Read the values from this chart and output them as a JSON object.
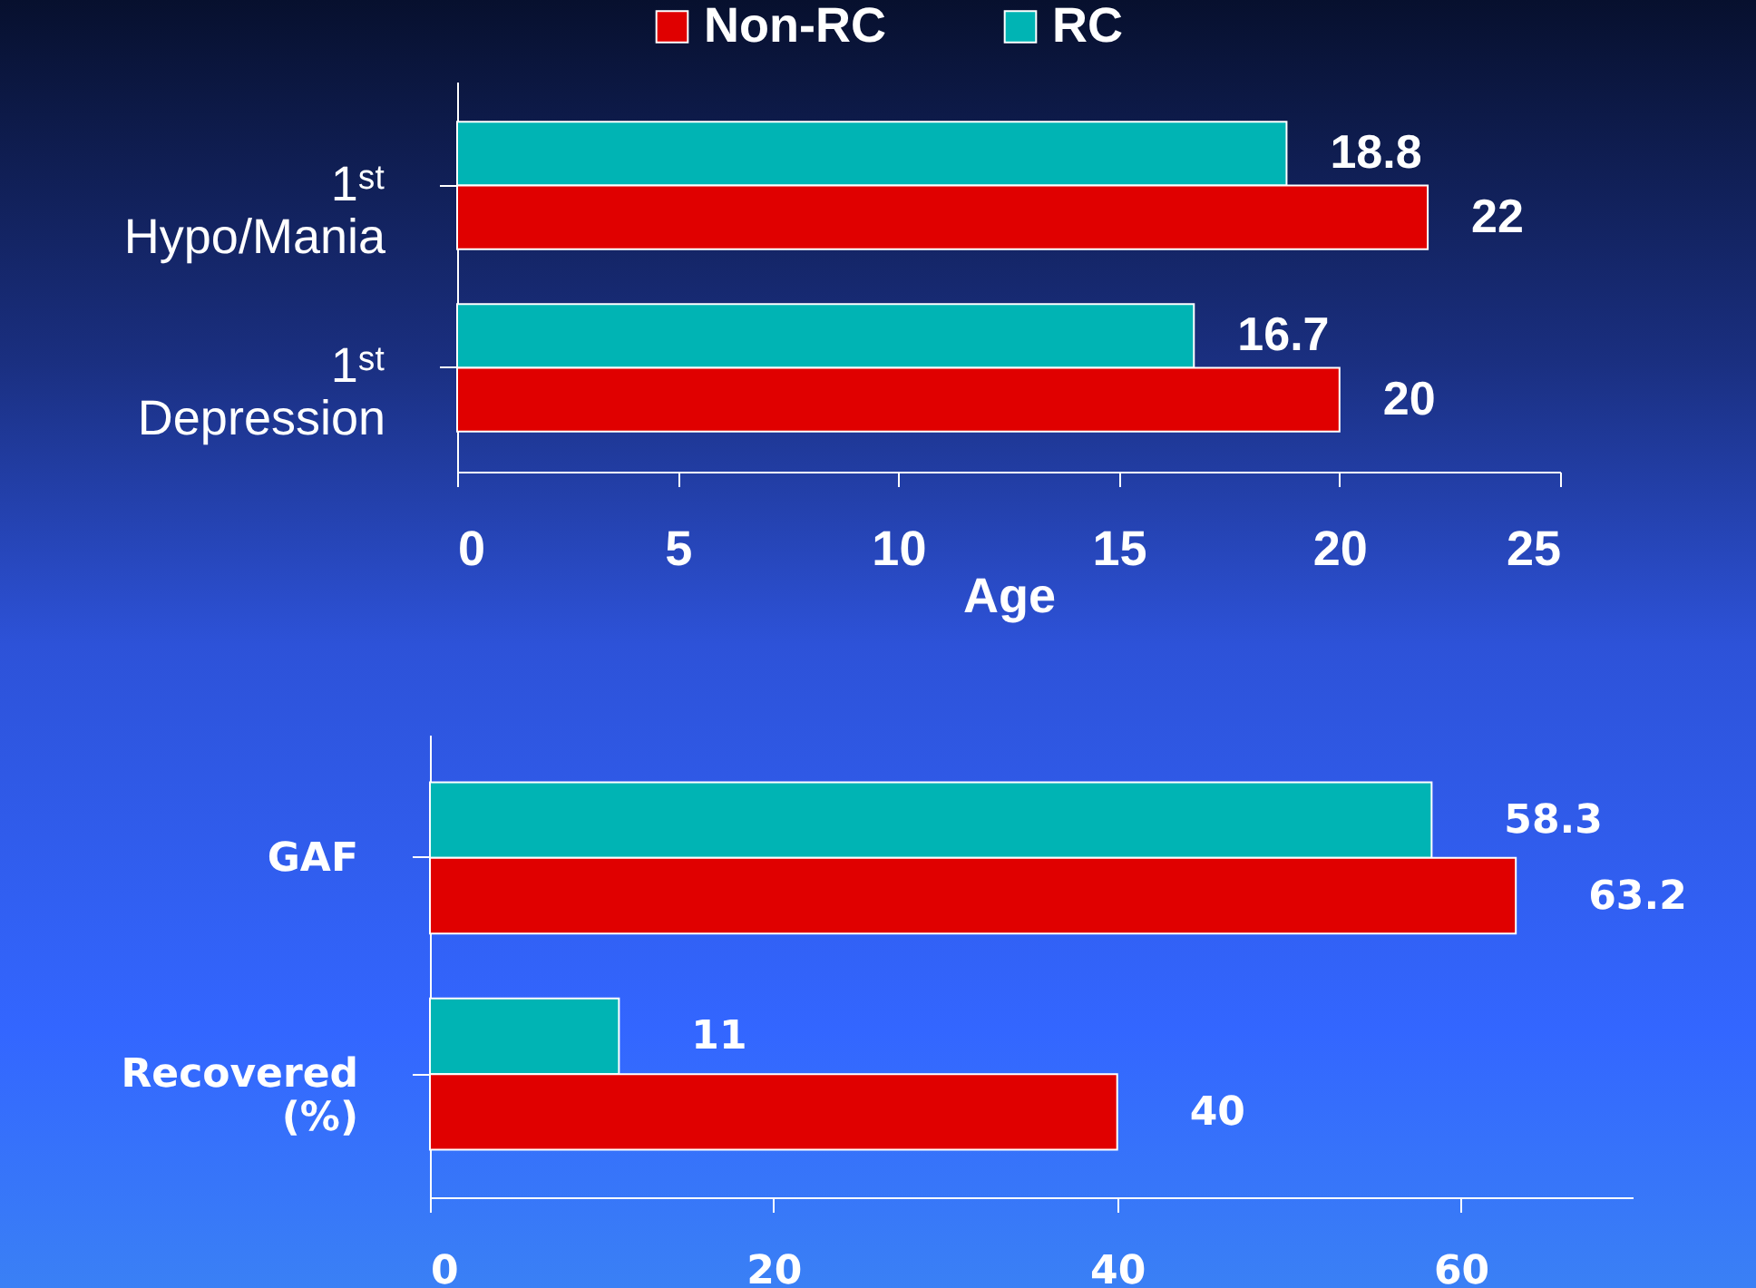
{
  "chart_data": [
    {
      "type": "bar",
      "orientation": "horizontal",
      "categories": [
        "1ˢᵗ Hypo/Mania",
        "1ˢᵗ Depression"
      ],
      "series": [
        {
          "name": "RC",
          "color": "#00b4b4",
          "values": [
            18.8,
            16.7
          ]
        },
        {
          "name": "Non-RC",
          "color": "#e00000",
          "values": [
            22,
            20
          ]
        }
      ],
      "xlabel": "Age",
      "xlim": [
        0,
        25
      ],
      "xticks": [
        0,
        5,
        10,
        15,
        20,
        25
      ],
      "data_labels": true,
      "legend": "top"
    },
    {
      "type": "bar",
      "orientation": "horizontal",
      "categories": [
        "GAF",
        "Recovered (%)"
      ],
      "series": [
        {
          "color": "#00b4b4",
          "values": [
            58.3,
            11
          ]
        },
        {
          "color": "#e00000",
          "values": [
            63.2,
            40
          ]
        }
      ],
      "xlim": [
        0,
        70
      ],
      "xticks": [
        0,
        20,
        40,
        60
      ],
      "data_labels": true
    }
  ]
}
